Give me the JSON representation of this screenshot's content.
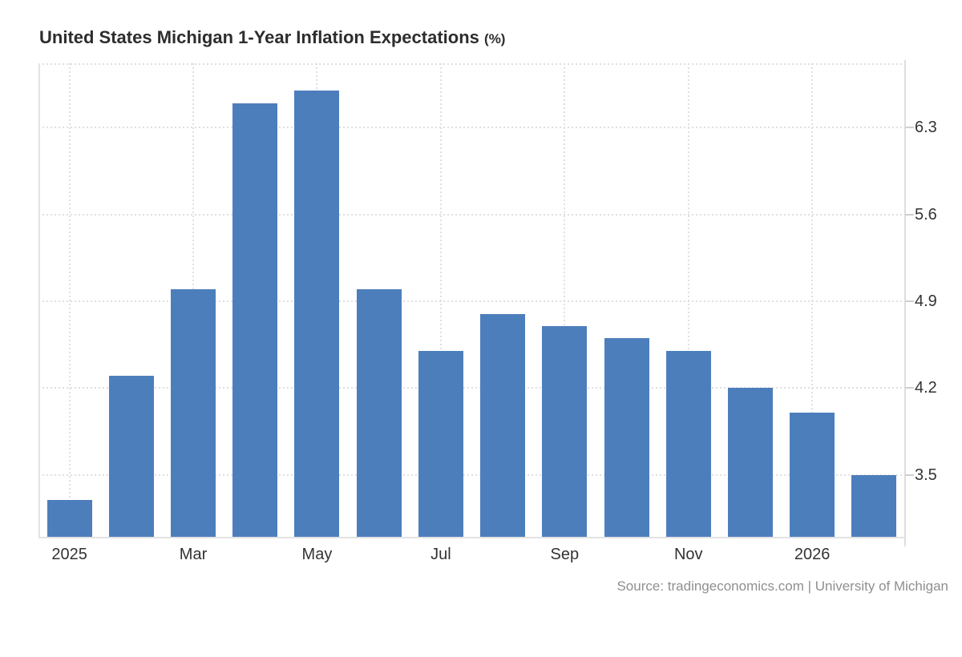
{
  "title": {
    "text": "United States Michigan 1-Year Inflation Expectations",
    "unit": "(%)"
  },
  "source": {
    "label": "Source: tradingeconomics.com | University of Michigan"
  },
  "colors": {
    "bar": "#4d7ebc",
    "gridline": "#e0e0e0",
    "plot_border": "#e3e3e3",
    "right_axis": "#dedede",
    "tick": "#cfcfcf",
    "title_text": "#2d2d2d",
    "axis_label_text": "#333333",
    "source_text": "#8f8f8f",
    "background": "#ffffff"
  },
  "chart_data": {
    "type": "bar",
    "title": "United States Michigan 1-Year Inflation Expectations (%)",
    "series_name": "Michigan 1-Year Inflation Expectations",
    "categories": [
      "Jan 2025",
      "Feb 2025",
      "Mar 2025",
      "Apr 2025",
      "May 2025",
      "Jun 2025",
      "Jul 2025",
      "Aug 2025",
      "Sep 2025",
      "Oct 2025",
      "Nov 2025",
      "Dec 2025",
      "Jan 2026",
      "Feb 2026"
    ],
    "values": [
      3.3,
      4.3,
      5.0,
      6.5,
      6.6,
      5.0,
      4.5,
      4.8,
      4.7,
      4.6,
      4.5,
      4.2,
      4.0,
      3.5
    ],
    "x_ticks": [
      {
        "label": "2025",
        "bar_index": 0
      },
      {
        "label": "Mar",
        "bar_index": 2
      },
      {
        "label": "May",
        "bar_index": 4
      },
      {
        "label": "Jul",
        "bar_index": 6
      },
      {
        "label": "Sep",
        "bar_index": 8
      },
      {
        "label": "Nov",
        "bar_index": 10
      },
      {
        "label": "2026",
        "bar_index": 12
      }
    ],
    "y_ticks": [
      "6.3",
      "5.6",
      "4.9",
      "4.2",
      "3.5"
    ],
    "ylim": [
      3.0,
      6.82
    ],
    "bar_color": "#4d7ebc",
    "grid": "dotted",
    "legend": "none",
    "top_border_dotted": true
  }
}
